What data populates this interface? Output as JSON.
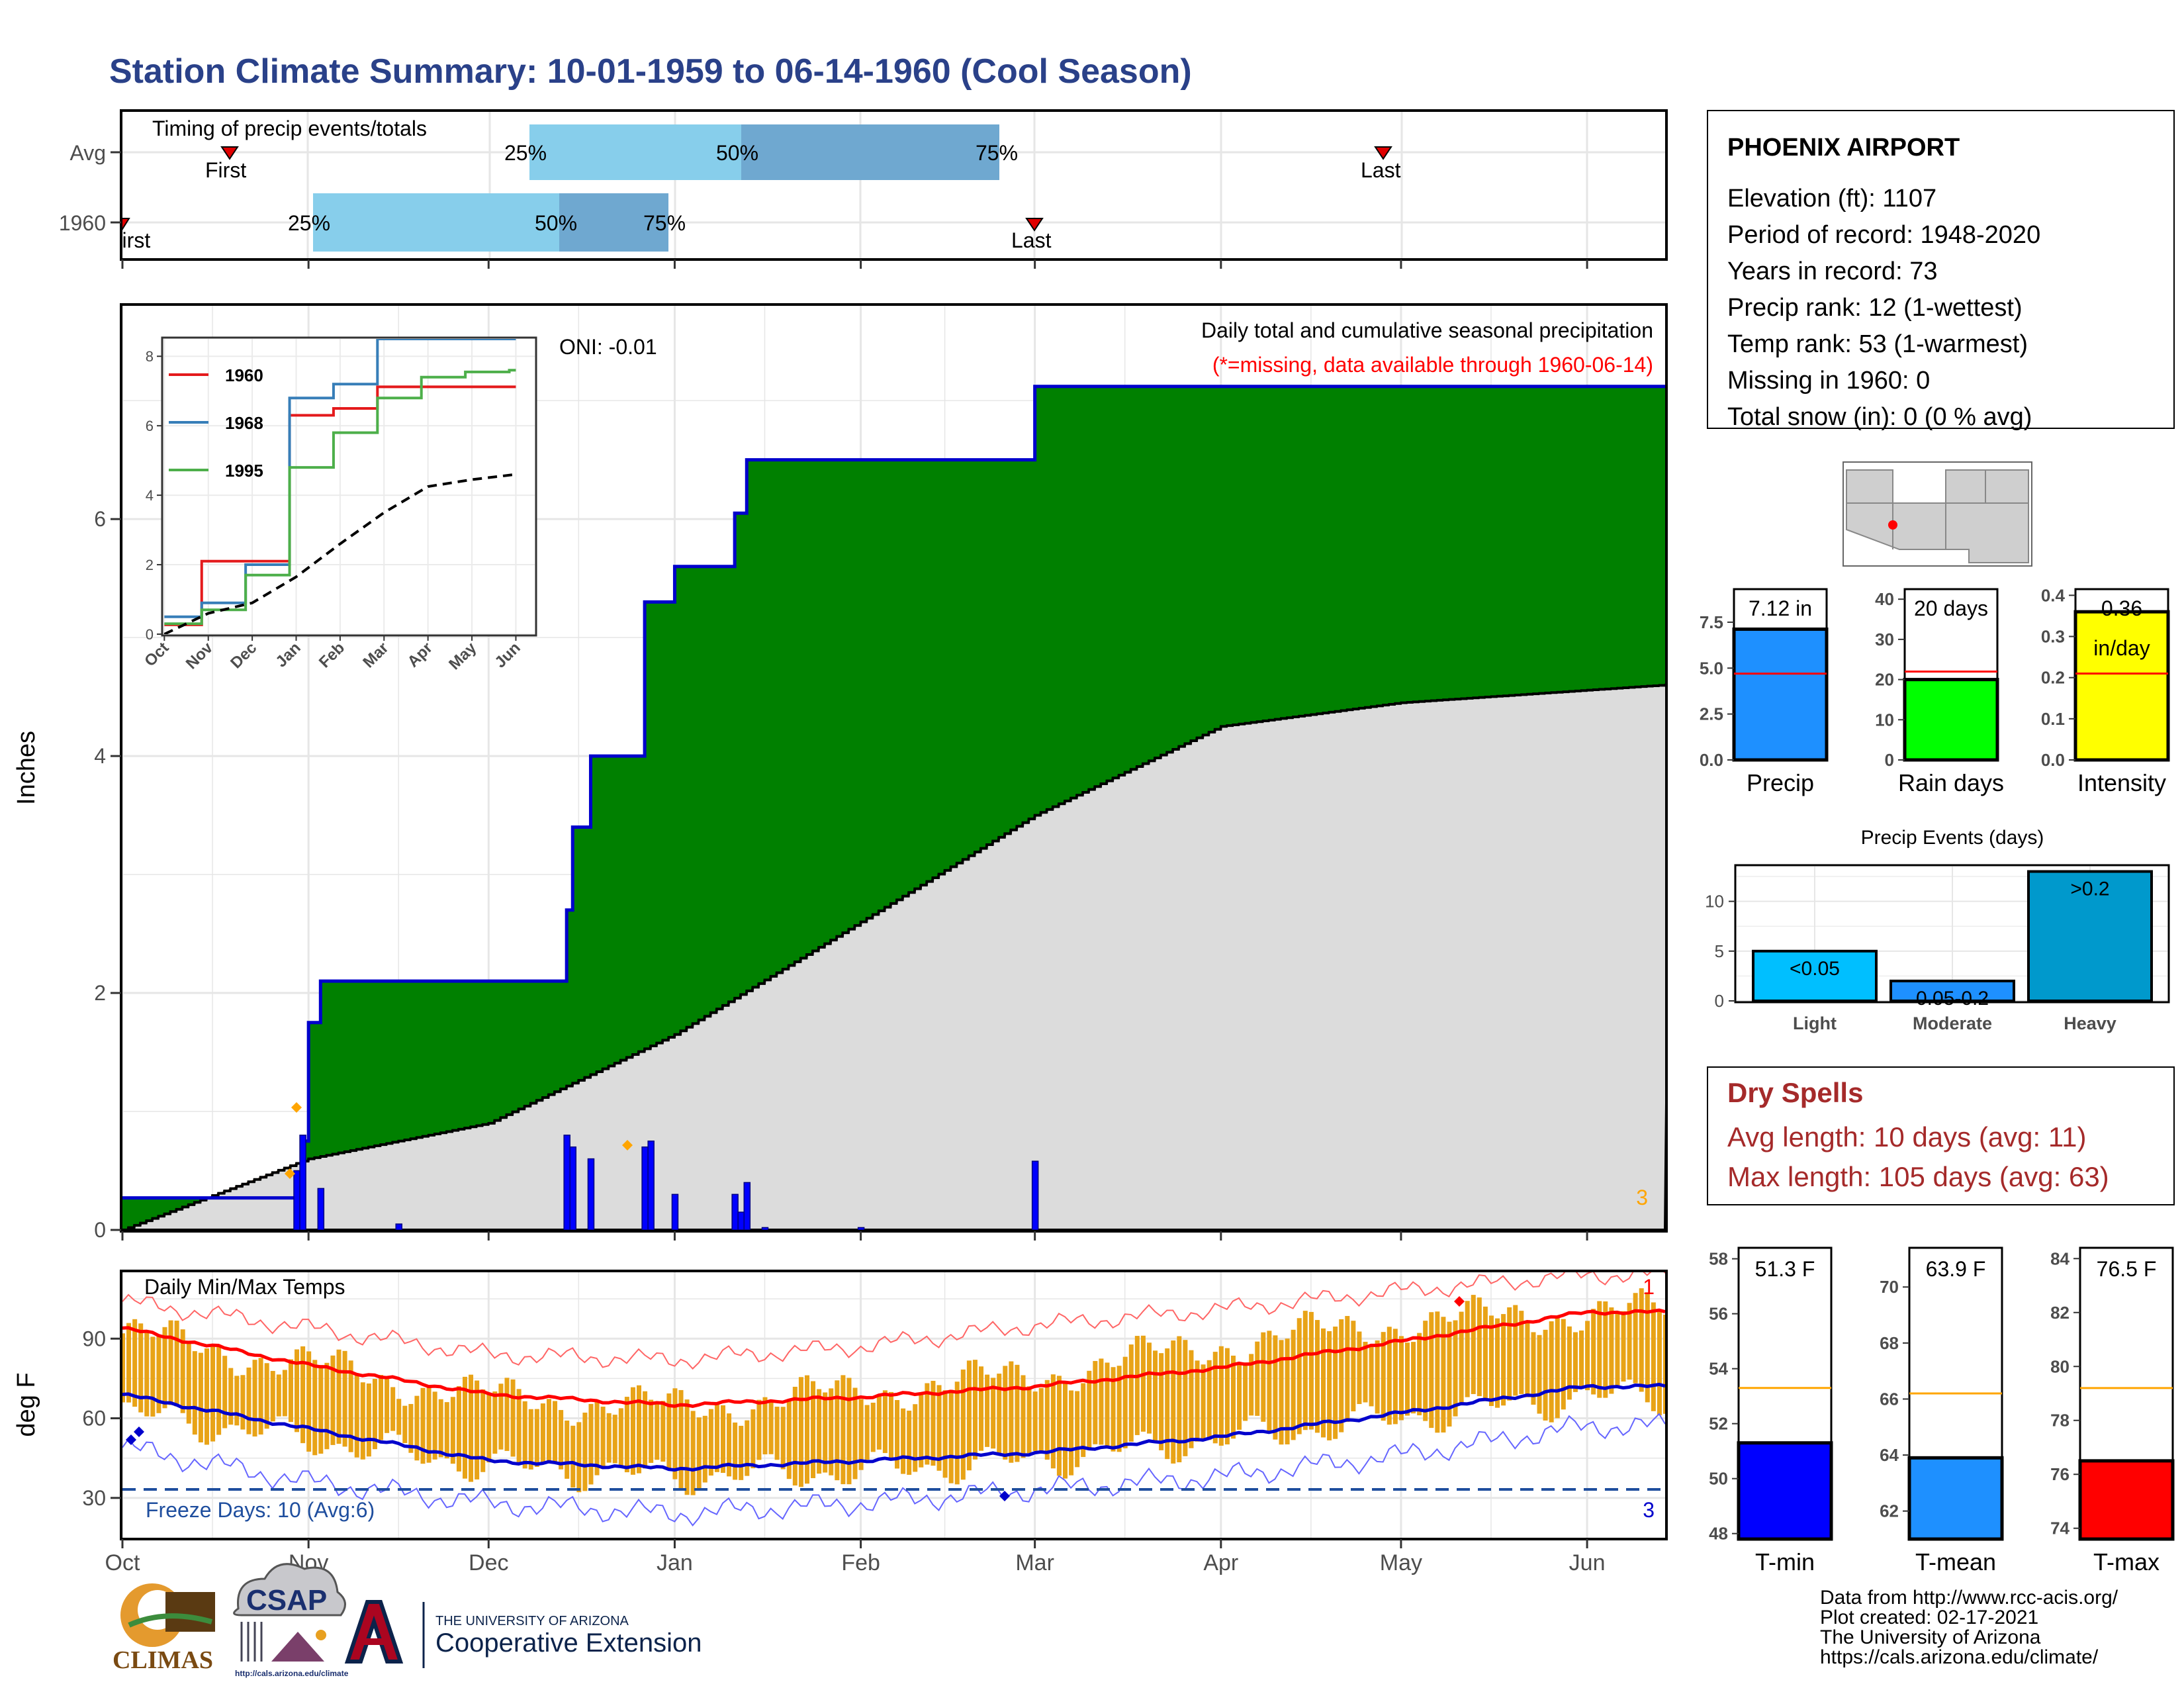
{
  "title": "Station Climate Summary: 10-01-1959 to 06-14-1960 (Cool Season)",
  "colors": {
    "title": "#2a4189",
    "precip_fill": "#008000",
    "precip_line": "#0000cc",
    "avg_fill": "#dcdcdc",
    "brown": "#8b5a14",
    "daily_bar": "#0000ff",
    "light_blue": "#87ceeb",
    "mid_blue": "#6fa8d0",
    "orange": "#f0b020",
    "red": "#ff0000",
    "blue": "#0000cc",
    "dry_spells": "#a52a2a",
    "freeze": "#1f4e9e"
  },
  "timing": {
    "title": "Timing of precip events/totals",
    "rows": [
      {
        "label": "Avg",
        "first": "First",
        "p25": "25%",
        "p50": "50%",
        "p75": "75%",
        "last": "Last"
      },
      {
        "label": "1960",
        "first": "First",
        "p25": "25%",
        "p50": "50%",
        "p75": "75%",
        "last": "Last"
      }
    ]
  },
  "precip_panel": {
    "ylabel": "Inches",
    "oni": "ONI: -0.01",
    "caption1": "Daily total and cumulative seasonal precipitation",
    "caption2": "(*=missing, data available through 1960-06-14)",
    "count_label": "3",
    "yticks": [
      "0",
      "2",
      "4",
      "6"
    ]
  },
  "inset": {
    "yticks": [
      "0",
      "2",
      "4",
      "6",
      "8"
    ],
    "months": [
      "Oct",
      "Nov",
      "Dec",
      "Jan",
      "Feb",
      "Mar",
      "Apr",
      "May",
      "Jun"
    ],
    "legend": [
      "1960",
      "1968",
      "1995"
    ]
  },
  "temp_panel": {
    "ylabel": "deg F",
    "title": "Daily Min/Max Temps",
    "freeze": "Freeze Days: 10 (Avg:6)",
    "count_top": "1",
    "count_bottom": "3",
    "yticks": [
      "30",
      "60",
      "90"
    ]
  },
  "x_months": [
    "Oct",
    "Nov",
    "Dec",
    "Jan",
    "Feb",
    "Mar",
    "Apr",
    "May",
    "Jun"
  ],
  "station": {
    "name": "PHOENIX AIRPORT",
    "lines": [
      "Elevation (ft): 1107",
      "Period of record: 1948-2020",
      "Years in record: 73",
      "Precip rank: 12 (1-wettest)",
      "Temp rank: 53 (1-warmest)",
      "Missing in 1960: 0",
      "Total snow (in): 0 (0 % avg)"
    ]
  },
  "mini_bars": [
    {
      "name": "Precip",
      "value_label": "7.12 in",
      "yticks": [
        "0.0",
        "2.5",
        "5.0",
        "7.5"
      ]
    },
    {
      "name": "Rain days",
      "value_label": "20 days",
      "yticks": [
        "0",
        "10",
        "20",
        "30",
        "40"
      ]
    },
    {
      "name": "Intensity",
      "value_label": "0.36",
      "value_label2": "in/day",
      "yticks": [
        "0.0",
        "0.1",
        "0.2",
        "0.3",
        "0.4"
      ]
    }
  ],
  "events": {
    "title": "Precip Events (days)",
    "cats": [
      "Light",
      "Moderate",
      "Heavy"
    ],
    "labels": [
      "<0.05",
      "0.05-0.2",
      ">0.2"
    ],
    "yticks": [
      "0",
      "5",
      "10"
    ]
  },
  "dry_spells": {
    "title": "Dry Spells",
    "avg": "Avg length: 10 days (avg: 11)",
    "max": "Max length: 105 days (avg: 63)"
  },
  "temp_bars": [
    {
      "name": "T-min",
      "value_label": "51.3 F",
      "yticks": [
        "48",
        "50",
        "52",
        "54",
        "56",
        "58"
      ]
    },
    {
      "name": "T-mean",
      "value_label": "63.9 F",
      "yticks": [
        "62",
        "64",
        "66",
        "68",
        "70"
      ]
    },
    {
      "name": "T-max",
      "value_label": "76.5 F",
      "yticks": [
        "74",
        "76",
        "78",
        "80",
        "82",
        "84"
      ]
    }
  ],
  "footer": {
    "lines": [
      "Data from http://www.rcc-acis.org/",
      "Plot created: 02-17-2021",
      "The University of Arizona",
      "https://cals.arizona.edu/climate/"
    ],
    "climas": "CLIMAS",
    "csap": "CSAP",
    "csap_url": "http://cals.arizona.edu/climate",
    "ua_small": "THE UNIVERSITY OF ARIZONA",
    "ua_big": "Cooperative Extension"
  },
  "chart_data": [
    {
      "type": "area",
      "title": "Daily total and cumulative seasonal precipitation",
      "ylabel": "Inches",
      "ylim": [
        0,
        7.8
      ],
      "x_range": [
        "1959-10-01",
        "1960-06-14"
      ],
      "series": [
        {
          "name": "1960",
          "values": [
            [
              "1959-10-01",
              0.27
            ],
            [
              "1959-10-30",
              0.27
            ],
            [
              "1959-10-31",
              0.75
            ],
            [
              "1959-11-01",
              1.75
            ],
            [
              "1959-11-03",
              2.1
            ],
            [
              "1959-12-13",
              2.1
            ],
            [
              "1959-12-14",
              2.7
            ],
            [
              "1959-12-15",
              3.4
            ],
            [
              "1959-12-18",
              4.0
            ],
            [
              "1959-12-26",
              4.0
            ],
            [
              "1959-12-27",
              5.3
            ],
            [
              "1960-01-01",
              5.6
            ],
            [
              "1960-01-10",
              5.6
            ],
            [
              "1960-01-11",
              6.05
            ],
            [
              "1960-01-13",
              6.5
            ],
            [
              "1960-02-01",
              6.5
            ],
            [
              "1960-02-29",
              6.5
            ],
            [
              "1960-03-01",
              7.12
            ],
            [
              "1960-06-14",
              7.12
            ]
          ]
        },
        {
          "name": "Average",
          "values": [
            [
              "1959-10-01",
              0.0
            ],
            [
              "1959-11-01",
              0.6
            ],
            [
              "1959-12-01",
              0.9
            ],
            [
              "1960-01-01",
              1.65
            ],
            [
              "1960-02-01",
              2.6
            ],
            [
              "1960-03-01",
              3.5
            ],
            [
              "1960-04-01",
              4.25
            ],
            [
              "1960-05-01",
              4.45
            ],
            [
              "1960-06-14",
              4.6
            ]
          ]
        },
        {
          "name": "Daily",
          "values": [
            [
              "1959-10-30",
              0.5
            ],
            [
              "1959-10-31",
              0.8
            ],
            [
              "1959-11-03",
              0.35
            ],
            [
              "1959-11-16",
              0.05
            ],
            [
              "1959-12-14",
              0.8
            ],
            [
              "1959-12-15",
              0.7
            ],
            [
              "1959-12-18",
              0.6
            ],
            [
              "1959-12-27",
              0.7
            ],
            [
              "1959-12-28",
              0.75
            ],
            [
              "1960-01-01",
              0.3
            ],
            [
              "1960-01-11",
              0.3
            ],
            [
              "1960-01-12",
              0.15
            ],
            [
              "1960-01-13",
              0.4
            ],
            [
              "1960-01-16",
              0.02
            ],
            [
              "1960-02-01",
              0.02
            ],
            [
              "1960-03-01",
              0.58
            ]
          ]
        }
      ]
    },
    {
      "type": "line",
      "title": "",
      "ylim": [
        0,
        8.5
      ],
      "categories": [
        "Oct",
        "Nov",
        "Dec",
        "Jan",
        "Feb",
        "Mar",
        "Apr",
        "May",
        "Jun"
      ],
      "series": [
        {
          "name": "1960",
          "values": [
            0.27,
            2.1,
            2.1,
            6.3,
            6.5,
            7.12,
            7.12,
            7.12,
            7.12
          ]
        },
        {
          "name": "1968",
          "values": [
            0.5,
            0.9,
            2.0,
            6.8,
            7.2,
            8.5,
            8.5,
            8.5,
            8.5
          ]
        },
        {
          "name": "1995",
          "values": [
            0.3,
            0.7,
            1.7,
            4.8,
            5.8,
            6.8,
            7.4,
            7.55,
            7.6
          ]
        },
        {
          "name": "Average",
          "values": [
            0.0,
            0.6,
            0.9,
            1.65,
            2.6,
            3.5,
            4.25,
            4.45,
            4.6
          ]
        }
      ]
    },
    {
      "type": "line",
      "title": "Daily Min/Max Temps",
      "ylabel": "deg F",
      "ylim": [
        15,
        115
      ],
      "categories": [
        "Oct",
        "Nov",
        "Dec",
        "Jan",
        "Feb",
        "Mar",
        "Apr",
        "May",
        "Jun"
      ],
      "series": [
        {
          "name": "Normal max",
          "values": [
            94,
            80,
            69,
            65,
            68,
            72,
            79,
            89,
            100
          ]
        },
        {
          "name": "Normal min",
          "values": [
            69,
            56,
            44,
            41,
            44,
            47,
            53,
            62,
            72
          ]
        },
        {
          "name": "Record high",
          "values": [
            104,
            94,
            84,
            82,
            87,
            95,
            101,
            108,
            114
          ]
        },
        {
          "name": "Record low",
          "values": [
            49,
            36,
            28,
            24,
            28,
            33,
            38,
            46,
            57
          ]
        },
        {
          "name": "Observed max",
          "values": [
            92,
            80,
            68,
            64,
            70,
            76,
            88,
            96,
            100
          ]
        },
        {
          "name": "Observed min",
          "values": [
            62,
            52,
            42,
            38,
            40,
            44,
            52,
            60,
            68
          ]
        }
      ]
    },
    {
      "type": "bar",
      "title": "",
      "categories": [
        "Precip",
        "Rain days",
        "Intensity"
      ],
      "series": [
        {
          "name": "1960",
          "values": [
            7.12,
            20,
            0.36
          ]
        },
        {
          "name": "Average",
          "values": [
            4.7,
            22,
            0.21
          ]
        }
      ]
    },
    {
      "type": "bar",
      "title": "Precip Events (days)",
      "categories": [
        "Light",
        "Moderate",
        "Heavy"
      ],
      "values": [
        5,
        2,
        13
      ],
      "ylim": [
        0,
        13.5
      ]
    },
    {
      "type": "bar",
      "title": "",
      "categories": [
        "T-min",
        "T-mean",
        "T-max"
      ],
      "series": [
        {
          "name": "1960",
          "values": [
            51.3,
            63.9,
            76.5
          ]
        },
        {
          "name": "Average",
          "values": [
            53.3,
            66.2,
            79.2
          ]
        }
      ]
    }
  ]
}
